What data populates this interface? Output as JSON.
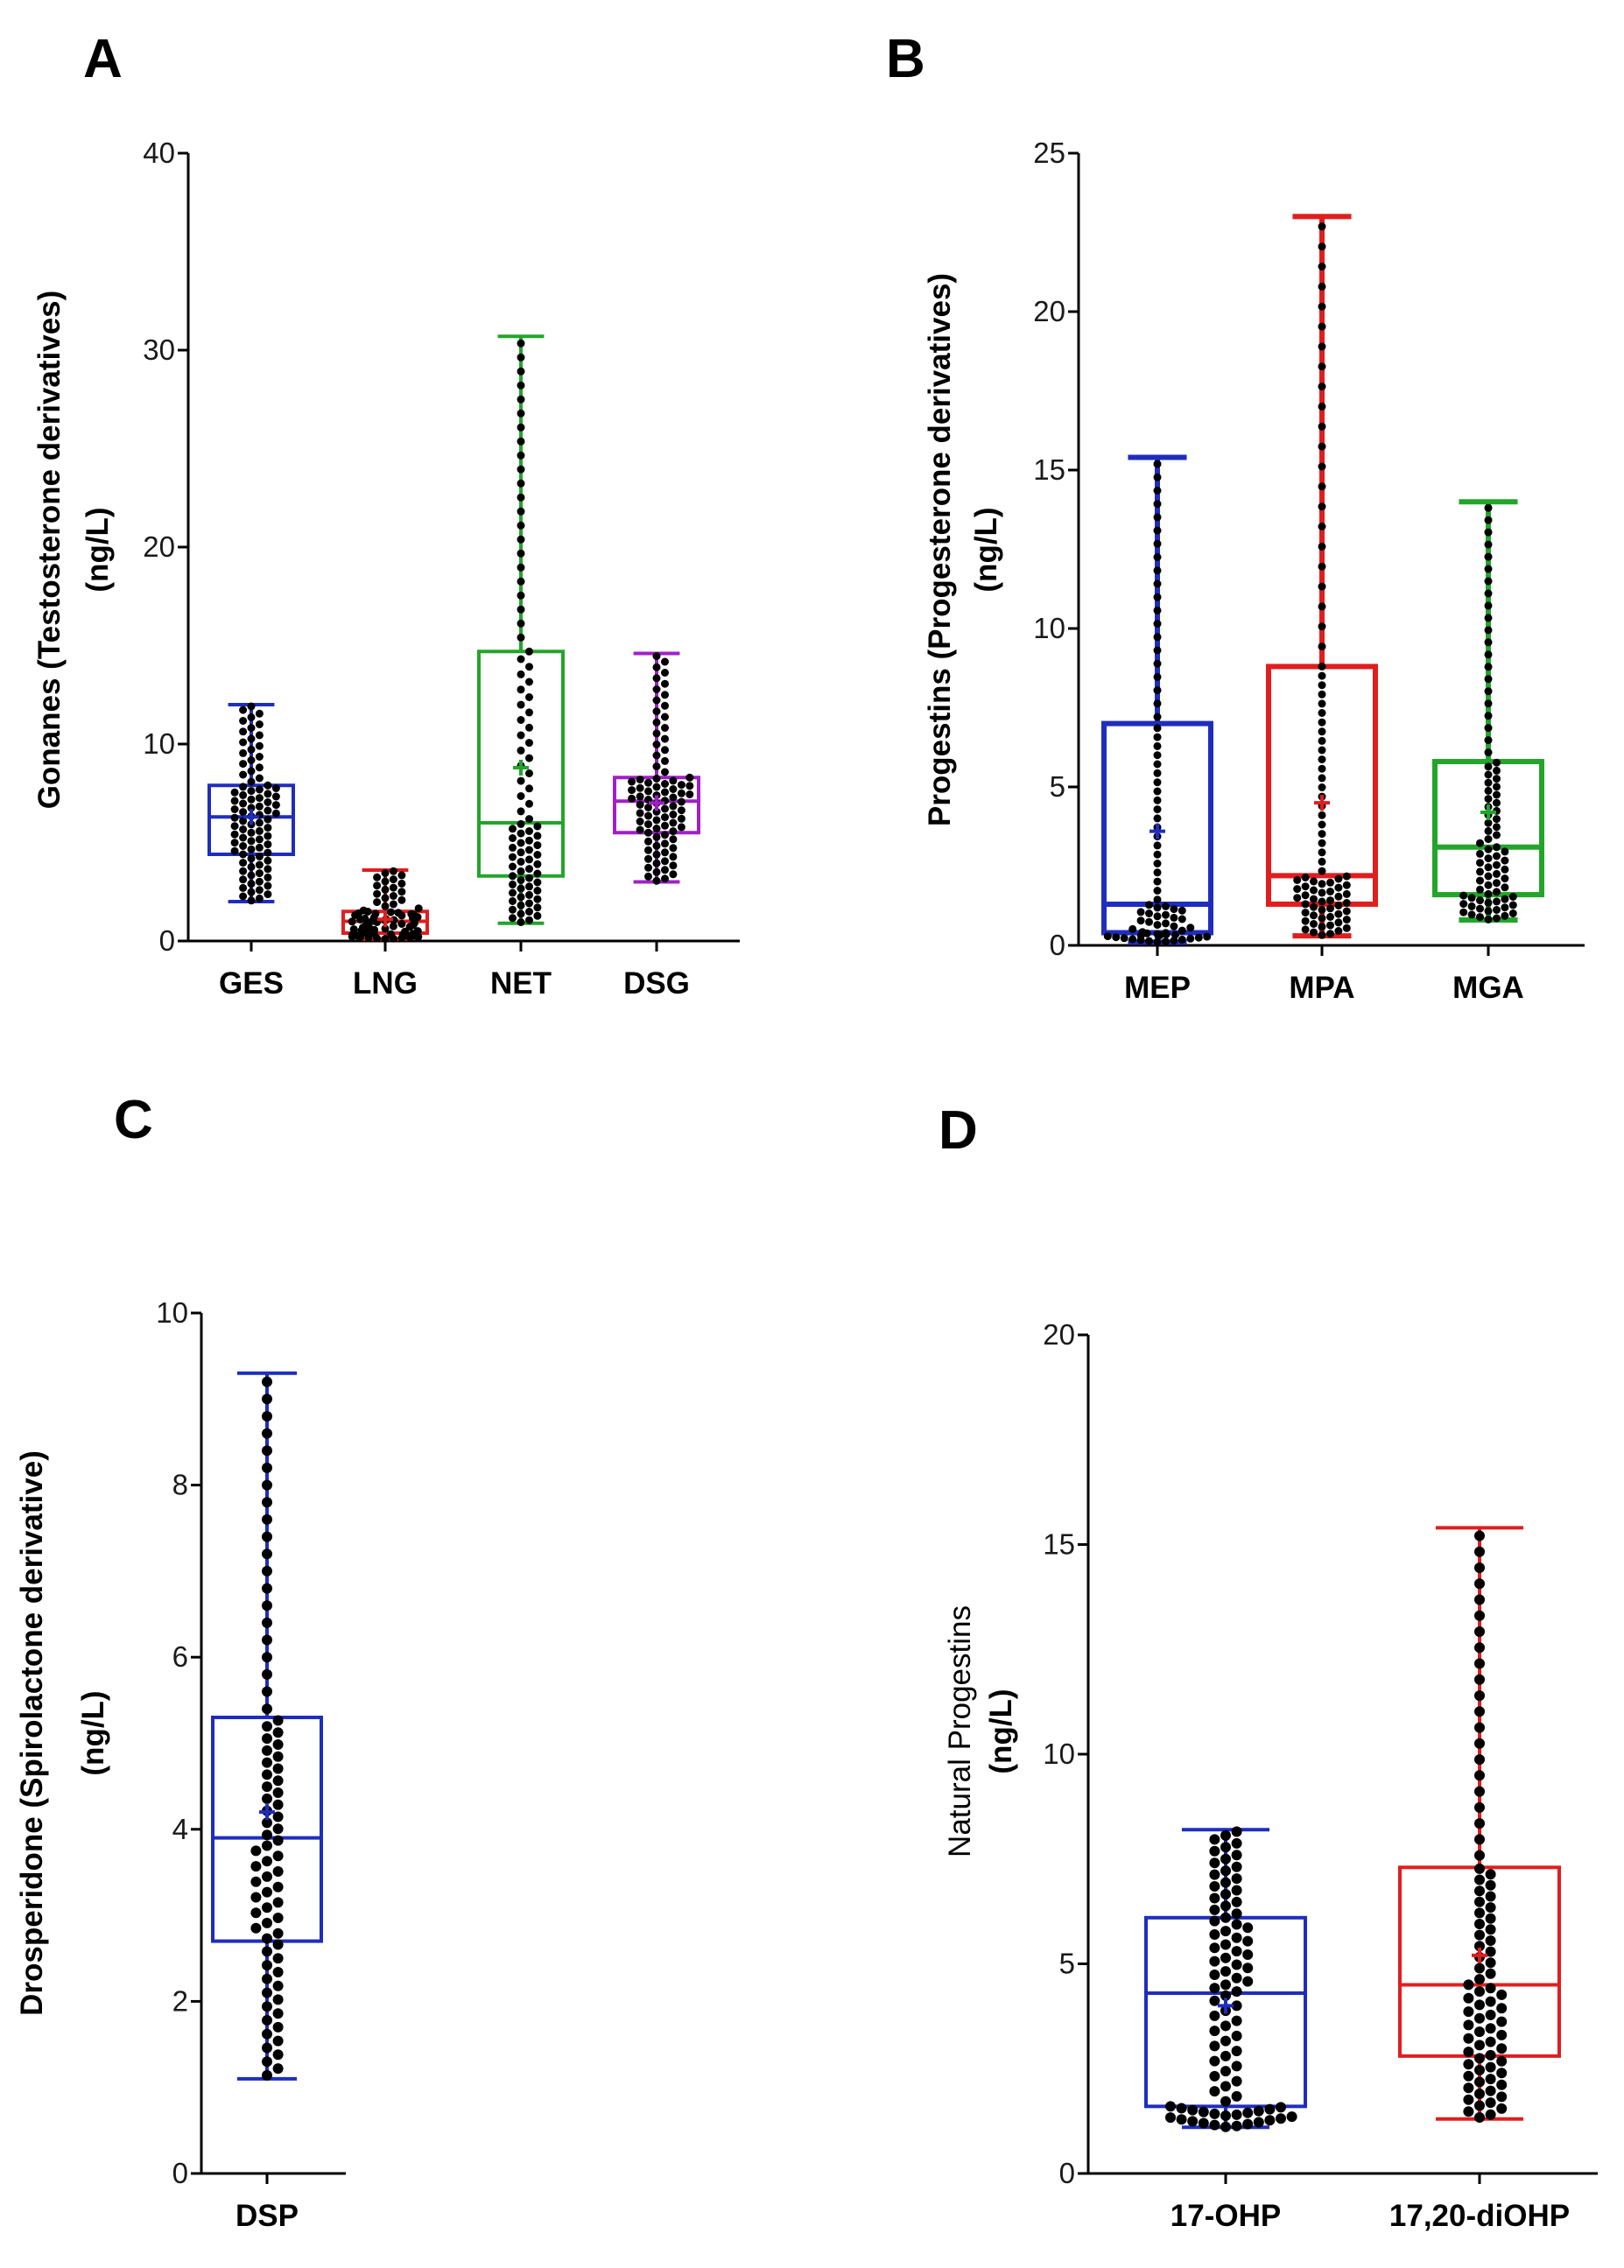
{
  "chart_data": [
    {
      "panel": "A",
      "type": "box",
      "ylabel_line1": "Gonanes (Testosterone derivatives)",
      "ylabel_line2": "(ng/L)",
      "ylim": [
        0,
        40
      ],
      "yticks": [
        0,
        10,
        20,
        30,
        40
      ],
      "series": [
        {
          "name": "GES",
          "color": "#1f2dbf",
          "min": 2.0,
          "q1": 4.4,
          "median": 6.3,
          "q3": 7.9,
          "max": 12.0,
          "mean": 6.3,
          "n": 90
        },
        {
          "name": "LNG",
          "color": "#e01e1e",
          "min": 0.1,
          "q1": 0.4,
          "median": 1.0,
          "q3": 1.5,
          "max": 3.6,
          "mean": 1.1,
          "n": 80
        },
        {
          "name": "NET",
          "color": "#22a52a",
          "min": 0.9,
          "q1": 3.3,
          "median": 6.0,
          "q3": 14.7,
          "max": 30.7,
          "mean": 8.8,
          "n": 90
        },
        {
          "name": "DSG",
          "color": "#a020c8",
          "min": 3.0,
          "q1": 5.5,
          "median": 7.1,
          "q3": 8.3,
          "max": 14.6,
          "mean": 7.0,
          "n": 90
        }
      ]
    },
    {
      "panel": "B",
      "type": "box",
      "ylabel_line1": "Progestins (Progesterone derivatives)",
      "ylabel_line2": "(ng/L)",
      "ylim": [
        0,
        25
      ],
      "yticks": [
        0,
        5,
        10,
        15,
        20,
        25
      ],
      "series": [
        {
          "name": "MEP",
          "color": "#1f2dbf",
          "min": 0.1,
          "q1": 0.4,
          "median": 1.3,
          "q3": 7.0,
          "max": 15.4,
          "mean": 3.6,
          "n": 80
        },
        {
          "name": "MPA",
          "color": "#e01e1e",
          "min": 0.3,
          "q1": 1.3,
          "median": 2.2,
          "q3": 8.8,
          "max": 23.0,
          "mean": 4.5,
          "n": 90
        },
        {
          "name": "MGA",
          "color": "#22a52a",
          "min": 0.8,
          "q1": 1.6,
          "median": 3.1,
          "q3": 5.8,
          "max": 14.0,
          "mean": 4.2,
          "n": 85
        }
      ]
    },
    {
      "panel": "C",
      "type": "box",
      "ylabel_line1": "Drosperidone (Spirolactone derivative)",
      "ylabel_line2": "(ng/L)",
      "ylim": [
        0,
        10
      ],
      "yticks": [
        0,
        2,
        4,
        6,
        8,
        10
      ],
      "series": [
        {
          "name": "DSP",
          "color": "#1f2dbf",
          "min": 1.1,
          "q1": 2.7,
          "median": 3.9,
          "q3": 5.3,
          "max": 9.3,
          "mean": 4.2,
          "n": 80
        }
      ]
    },
    {
      "panel": "D",
      "type": "box",
      "ylabel_line1": "Natural Progestins",
      "ylabel_line2": "(ng/L)",
      "ylim": [
        0,
        20
      ],
      "yticks": [
        0,
        5,
        10,
        15,
        20
      ],
      "series": [
        {
          "name": "17-OHP",
          "color": "#1f2dbf",
          "min": 1.1,
          "q1": 1.6,
          "median": 4.3,
          "q3": 6.1,
          "max": 8.2,
          "mean": 4.0,
          "n": 90
        },
        {
          "name": "17,20-diOHP",
          "color": "#e01e1e",
          "min": 1.3,
          "q1": 2.8,
          "median": 4.5,
          "q3": 7.3,
          "max": 15.4,
          "mean": 5.2,
          "n": 85
        }
      ]
    }
  ]
}
